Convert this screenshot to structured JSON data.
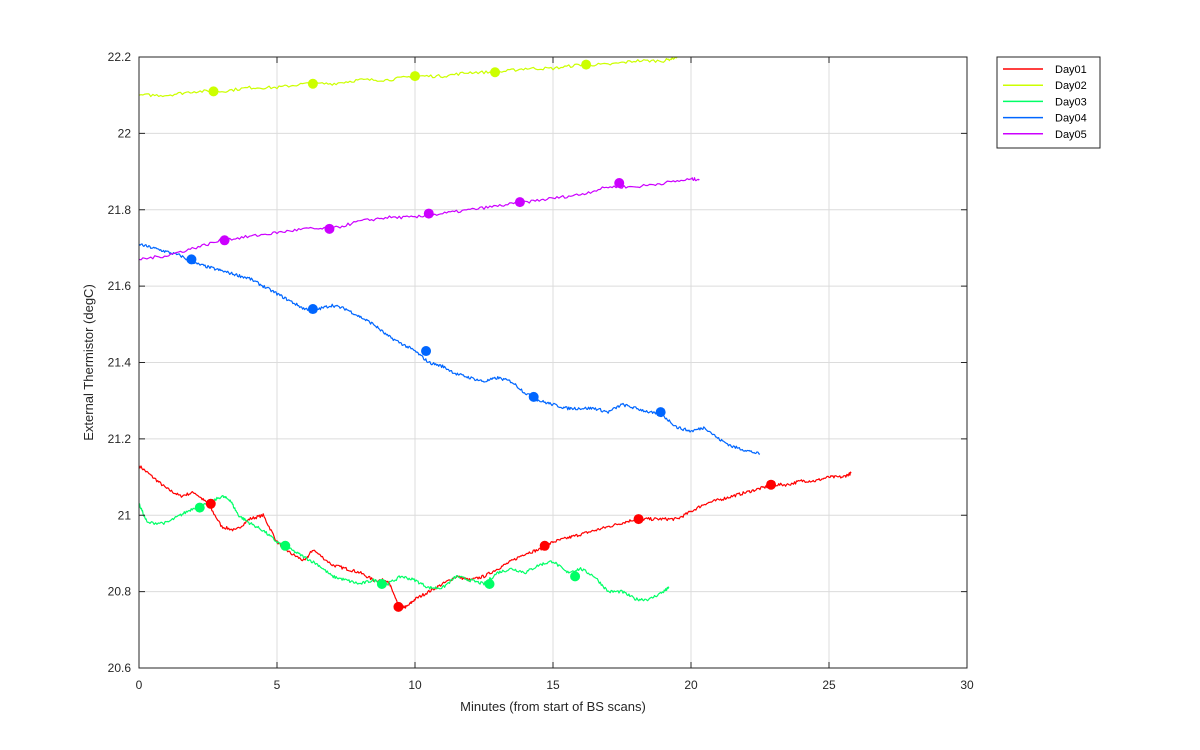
{
  "chart_data": {
    "type": "line",
    "xlabel": "Minutes (from start of BS scans)",
    "ylabel": "External Thermistor (degC)",
    "xlim": [
      0,
      30
    ],
    "ylim": [
      20.6,
      22.2
    ],
    "xticks": [
      0,
      5,
      10,
      15,
      20,
      25,
      30
    ],
    "yticks": [
      20.6,
      20.8,
      21,
      21.2,
      21.4,
      21.6,
      21.8,
      22,
      22.2
    ],
    "xtick_labels": [
      "0",
      "5",
      "10",
      "15",
      "20",
      "25",
      "30"
    ],
    "ytick_labels": [
      "20.6",
      "20.8",
      "21",
      "21.2",
      "21.4",
      "21.6",
      "21.8",
      "22",
      "22.2"
    ],
    "grid": true,
    "legend_position": "outside-top-right",
    "series": [
      {
        "name": "Day01",
        "color": "#ff0000",
        "points": [
          [
            0,
            21.13
          ],
          [
            0.5,
            21.1
          ],
          [
            1,
            21.07
          ],
          [
            1.5,
            21.05
          ],
          [
            2,
            21.06
          ],
          [
            2.5,
            21.03
          ],
          [
            3,
            20.97
          ],
          [
            3.5,
            20.96
          ],
          [
            4,
            20.99
          ],
          [
            4.5,
            21.0
          ],
          [
            5,
            20.93
          ],
          [
            5.5,
            20.9
          ],
          [
            6,
            20.88
          ],
          [
            6.3,
            20.91
          ],
          [
            7,
            20.87
          ],
          [
            7.5,
            20.86
          ],
          [
            8,
            20.85
          ],
          [
            8.5,
            20.83
          ],
          [
            9,
            20.83
          ],
          [
            9.2,
            20.8
          ],
          [
            9.4,
            20.76
          ],
          [
            9.7,
            20.76
          ],
          [
            10,
            20.78
          ],
          [
            10.5,
            20.8
          ],
          [
            11,
            20.82
          ],
          [
            11.5,
            20.84
          ],
          [
            12,
            20.83
          ],
          [
            12.5,
            20.84
          ],
          [
            13,
            20.86
          ],
          [
            13.5,
            20.88
          ],
          [
            14,
            20.9
          ],
          [
            14.5,
            20.91
          ],
          [
            15,
            20.93
          ],
          [
            15.5,
            20.94
          ],
          [
            16,
            20.95
          ],
          [
            16.5,
            20.96
          ],
          [
            17,
            20.97
          ],
          [
            17.5,
            20.98
          ],
          [
            18,
            20.99
          ],
          [
            18.5,
            20.99
          ],
          [
            19,
            20.99
          ],
          [
            19.5,
            20.99
          ],
          [
            20,
            21.01
          ],
          [
            20.5,
            21.03
          ],
          [
            21,
            21.04
          ],
          [
            21.5,
            21.05
          ],
          [
            22,
            21.06
          ],
          [
            22.5,
            21.07
          ],
          [
            23,
            21.08
          ],
          [
            23.5,
            21.08
          ],
          [
            24,
            21.09
          ],
          [
            24.5,
            21.09
          ],
          [
            25,
            21.1
          ],
          [
            25.5,
            21.1
          ],
          [
            25.8,
            21.11
          ]
        ],
        "markers": [
          [
            2.6,
            21.03
          ],
          [
            9.4,
            20.76
          ],
          [
            14.7,
            20.92
          ],
          [
            18.1,
            20.99
          ],
          [
            22.9,
            21.08
          ]
        ]
      },
      {
        "name": "Day02",
        "color": "#ccff00",
        "points": [
          [
            0,
            22.1
          ],
          [
            1,
            22.1
          ],
          [
            2,
            22.11
          ],
          [
            3,
            22.11
          ],
          [
            4,
            22.12
          ],
          [
            5,
            22.12
          ],
          [
            6,
            22.13
          ],
          [
            7,
            22.13
          ],
          [
            8,
            22.14
          ],
          [
            9,
            22.14
          ],
          [
            10,
            22.15
          ],
          [
            11,
            22.15
          ],
          [
            12,
            22.16
          ],
          [
            13,
            22.16
          ],
          [
            14,
            22.17
          ],
          [
            15,
            22.17
          ],
          [
            16,
            22.18
          ],
          [
            17,
            22.18
          ],
          [
            18,
            22.19
          ],
          [
            19,
            22.19
          ],
          [
            19.5,
            22.2
          ]
        ],
        "markers": [
          [
            2.7,
            22.11
          ],
          [
            6.3,
            22.13
          ],
          [
            10,
            22.15
          ],
          [
            12.9,
            22.16
          ],
          [
            16.2,
            22.18
          ]
        ]
      },
      {
        "name": "Day03",
        "color": "#00ff66",
        "points": [
          [
            0,
            21.03
          ],
          [
            0.3,
            20.98
          ],
          [
            1,
            20.98
          ],
          [
            1.5,
            21.0
          ],
          [
            2,
            21.02
          ],
          [
            2.5,
            21.03
          ],
          [
            3,
            21.05
          ],
          [
            3.3,
            21.04
          ],
          [
            3.6,
            21.0
          ],
          [
            4,
            20.98
          ],
          [
            4.5,
            20.96
          ],
          [
            5,
            20.93
          ],
          [
            5.5,
            20.91
          ],
          [
            6,
            20.89
          ],
          [
            6.5,
            20.87
          ],
          [
            7,
            20.84
          ],
          [
            7.5,
            20.83
          ],
          [
            8,
            20.82
          ],
          [
            8.5,
            20.83
          ],
          [
            9,
            20.82
          ],
          [
            9.5,
            20.84
          ],
          [
            10,
            20.83
          ],
          [
            10.5,
            20.81
          ],
          [
            11,
            20.81
          ],
          [
            11.5,
            20.84
          ],
          [
            12,
            20.83
          ],
          [
            12.5,
            20.82
          ],
          [
            13,
            20.85
          ],
          [
            13.5,
            20.86
          ],
          [
            14,
            20.85
          ],
          [
            14.5,
            20.87
          ],
          [
            15,
            20.88
          ],
          [
            15.5,
            20.85
          ],
          [
            16,
            20.86
          ],
          [
            16.5,
            20.84
          ],
          [
            17,
            20.8
          ],
          [
            17.5,
            20.8
          ],
          [
            18,
            20.78
          ],
          [
            18.5,
            20.78
          ],
          [
            19,
            20.8
          ],
          [
            19.2,
            20.81
          ]
        ],
        "markers": [
          [
            2.2,
            21.02
          ],
          [
            5.3,
            20.92
          ],
          [
            8.8,
            20.82
          ],
          [
            12.7,
            20.82
          ],
          [
            15.8,
            20.84
          ]
        ]
      },
      {
        "name": "Day04",
        "color": "#0066ff",
        "points": [
          [
            0,
            21.71
          ],
          [
            0.5,
            21.7
          ],
          [
            1,
            21.69
          ],
          [
            1.5,
            21.68
          ],
          [
            2,
            21.66
          ],
          [
            2.5,
            21.65
          ],
          [
            3,
            21.64
          ],
          [
            3.5,
            21.63
          ],
          [
            4,
            21.62
          ],
          [
            4.5,
            21.6
          ],
          [
            5,
            21.58
          ],
          [
            5.5,
            21.56
          ],
          [
            6,
            21.54
          ],
          [
            6.5,
            21.54
          ],
          [
            7,
            21.55
          ],
          [
            7.5,
            21.54
          ],
          [
            8,
            21.52
          ],
          [
            8.5,
            21.5
          ],
          [
            9,
            21.47
          ],
          [
            9.5,
            21.45
          ],
          [
            10,
            21.43
          ],
          [
            10.5,
            21.4
          ],
          [
            11,
            21.39
          ],
          [
            11.5,
            21.37
          ],
          [
            12,
            21.36
          ],
          [
            12.5,
            21.35
          ],
          [
            13,
            21.36
          ],
          [
            13.5,
            21.35
          ],
          [
            14,
            21.32
          ],
          [
            14.5,
            21.3
          ],
          [
            15,
            21.29
          ],
          [
            15.5,
            21.28
          ],
          [
            16,
            21.28
          ],
          [
            16.5,
            21.28
          ],
          [
            17,
            21.27
          ],
          [
            17.5,
            21.29
          ],
          [
            18,
            21.28
          ],
          [
            18.5,
            21.27
          ],
          [
            19,
            21.26
          ],
          [
            19.5,
            21.23
          ],
          [
            20,
            21.22
          ],
          [
            20.5,
            21.23
          ],
          [
            21,
            21.2
          ],
          [
            21.5,
            21.18
          ],
          [
            22,
            21.17
          ],
          [
            22.5,
            21.16
          ]
        ],
        "markers": [
          [
            1.9,
            21.67
          ],
          [
            6.3,
            21.54
          ],
          [
            10.4,
            21.43
          ],
          [
            14.3,
            21.31
          ],
          [
            18.9,
            21.27
          ]
        ]
      },
      {
        "name": "Day05",
        "color": "#cc00ff",
        "points": [
          [
            0,
            21.67
          ],
          [
            1,
            21.68
          ],
          [
            2,
            21.7
          ],
          [
            3,
            21.72
          ],
          [
            4,
            21.73
          ],
          [
            5,
            21.74
          ],
          [
            6,
            21.75
          ],
          [
            7,
            21.75
          ],
          [
            8,
            21.77
          ],
          [
            9,
            21.78
          ],
          [
            10,
            21.78
          ],
          [
            11,
            21.79
          ],
          [
            12,
            21.8
          ],
          [
            13,
            21.81
          ],
          [
            14,
            21.82
          ],
          [
            15,
            21.83
          ],
          [
            16,
            21.84
          ],
          [
            17,
            21.86
          ],
          [
            18,
            21.86
          ],
          [
            19,
            21.87
          ],
          [
            20,
            21.88
          ],
          [
            20.3,
            21.88
          ]
        ],
        "markers": [
          [
            3.1,
            21.72
          ],
          [
            6.9,
            21.75
          ],
          [
            10.5,
            21.79
          ],
          [
            13.8,
            21.82
          ],
          [
            17.4,
            21.87
          ]
        ]
      }
    ]
  }
}
